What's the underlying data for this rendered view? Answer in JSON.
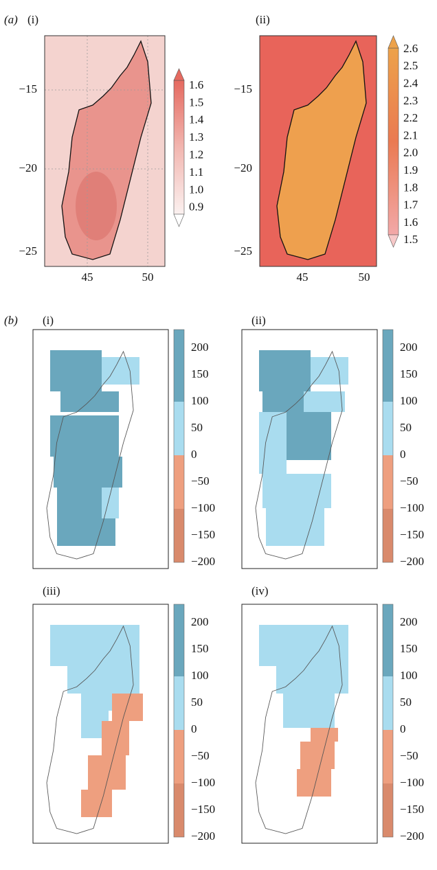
{
  "panel_a": {
    "label": "(a)",
    "maps": [
      {
        "label": "(i)",
        "yticks": [
          "−15",
          "−20",
          "−25"
        ],
        "xticks": [
          "45",
          "50"
        ],
        "colorbar": [
          "1.6",
          "1.5",
          "1.4",
          "1.3",
          "1.2",
          "1.1",
          "1.0",
          "0.9"
        ]
      },
      {
        "label": "(ii)",
        "yticks": [
          "−15",
          "−20",
          "−25"
        ],
        "xticks": [
          "45",
          "50"
        ],
        "colorbar": [
          "2.6",
          "2.5",
          "2.4",
          "2.3",
          "2.2",
          "2.1",
          "2.0",
          "1.9",
          "1.8",
          "1.7",
          "1.6",
          "1.5"
        ]
      }
    ]
  },
  "panel_b": {
    "label": "(b)",
    "maps": [
      {
        "label": "(i)"
      },
      {
        "label": "(ii)"
      },
      {
        "label": "(iii)"
      },
      {
        "label": "(iv)"
      }
    ],
    "colorbar": [
      "200",
      "150",
      "100",
      "50",
      "0",
      "−50",
      "−100",
      "−150",
      "−200"
    ]
  }
}
